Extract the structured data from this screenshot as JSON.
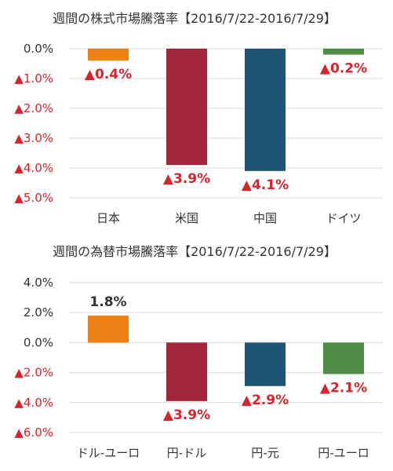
{
  "colors": {
    "orange": "#ee8114",
    "red": "#a3263a",
    "blue": "#1d5577",
    "green": "#4e8b43",
    "negative_label": "#d9232a",
    "positive_label": "#333333",
    "positive_tick": "#333333"
  },
  "chart_data": [
    {
      "type": "bar",
      "title": "週間の株式市場騰落率【2016/7/22-2016/7/29】",
      "categories": [
        "日本",
        "米国",
        "中国",
        "ドイツ"
      ],
      "values": [
        -0.4,
        -3.9,
        -4.1,
        -0.2
      ],
      "value_labels": [
        "▲0.4%",
        "▲3.9%",
        "▲4.1%",
        "▲0.2%"
      ],
      "bar_colors": [
        "#ee8114",
        "#a3263a",
        "#1d5577",
        "#4e8b43"
      ],
      "ylim": [
        -5.0,
        0.0
      ],
      "yticks": [
        0.0,
        -1.0,
        -2.0,
        -3.0,
        -4.0,
        -5.0
      ],
      "ytick_labels": [
        "0.0%",
        "▲1.0%",
        "▲2.0%",
        "▲3.0%",
        "▲4.0%",
        "▲5.0%"
      ],
      "xlabel": "",
      "ylabel": "",
      "grid": true,
      "legend": "none"
    },
    {
      "type": "bar",
      "title": "週間の為替市場騰落率【2016/7/22-2016/7/29】",
      "categories": [
        "ドル-ユーロ",
        "円-ドル",
        "円-元",
        "円-ユーロ"
      ],
      "values": [
        1.8,
        -3.9,
        -2.9,
        -2.1
      ],
      "value_labels": [
        "1.8%",
        "▲3.9%",
        "▲2.9%",
        "▲2.1%"
      ],
      "bar_colors": [
        "#ee8114",
        "#a3263a",
        "#1d5577",
        "#4e8b43"
      ],
      "ylim": [
        -6.0,
        4.0
      ],
      "yticks": [
        4.0,
        2.0,
        0.0,
        -2.0,
        -4.0,
        -6.0
      ],
      "ytick_labels": [
        "4.0%",
        "2.0%",
        "0.0%",
        "▲2.0%",
        "▲4.0%",
        "▲6.0%"
      ],
      "xlabel": "",
      "ylabel": "",
      "grid": true,
      "legend": "none"
    }
  ]
}
